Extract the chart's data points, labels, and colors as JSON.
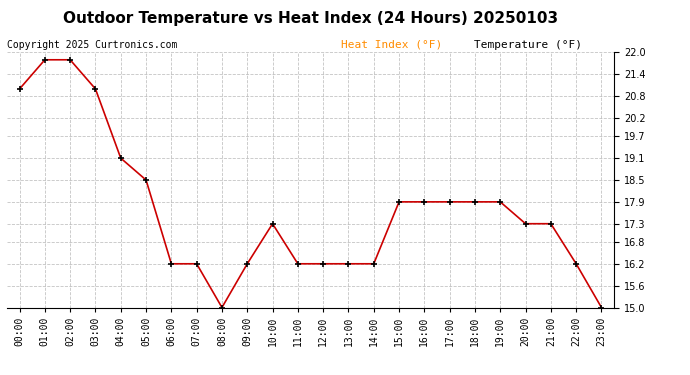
{
  "title": "Outdoor Temperature vs Heat Index (24 Hours) 20250103",
  "copyright": "Copyright 2025 Curtronics.com",
  "legend_heat_index": "Heat Index (°F)",
  "legend_temp": "Temperature (°F)",
  "hours": [
    "00:00",
    "01:00",
    "02:00",
    "03:00",
    "04:00",
    "05:00",
    "06:00",
    "07:00",
    "08:00",
    "09:00",
    "10:00",
    "11:00",
    "12:00",
    "13:00",
    "14:00",
    "15:00",
    "16:00",
    "17:00",
    "18:00",
    "19:00",
    "20:00",
    "21:00",
    "22:00",
    "23:00"
  ],
  "temperature": [
    21.0,
    21.8,
    21.8,
    21.0,
    19.1,
    18.5,
    16.2,
    16.2,
    15.0,
    16.2,
    17.3,
    16.2,
    16.2,
    16.2,
    16.2,
    17.9,
    17.9,
    17.9,
    17.9,
    17.9,
    17.3,
    17.3,
    16.2,
    15.0
  ],
  "heat_index": [
    21.0,
    21.8,
    21.8,
    21.0,
    19.1,
    18.5,
    16.2,
    16.2,
    15.0,
    16.2,
    17.3,
    16.2,
    16.2,
    16.2,
    16.2,
    17.9,
    17.9,
    17.9,
    17.9,
    17.9,
    17.3,
    17.3,
    16.2,
    15.0
  ],
  "temp_color": "#cc0000",
  "heat_index_color": "#ff8c00",
  "background_color": "#ffffff",
  "ylim_min": 15.0,
  "ylim_max": 22.0,
  "yticks": [
    15.0,
    15.6,
    16.2,
    16.8,
    17.3,
    17.9,
    18.5,
    19.1,
    19.7,
    20.2,
    20.8,
    21.4,
    22.0
  ],
  "title_fontsize": 11,
  "copyright_fontsize": 7,
  "legend_fontsize": 8,
  "tick_fontsize": 7,
  "line_width": 1.2,
  "marker": "+",
  "marker_size": 5,
  "marker_edge_width": 1.2,
  "grid_color": "#aaaaaa",
  "grid_style": "--",
  "grid_alpha": 0.7,
  "grid_linewidth": 0.6
}
